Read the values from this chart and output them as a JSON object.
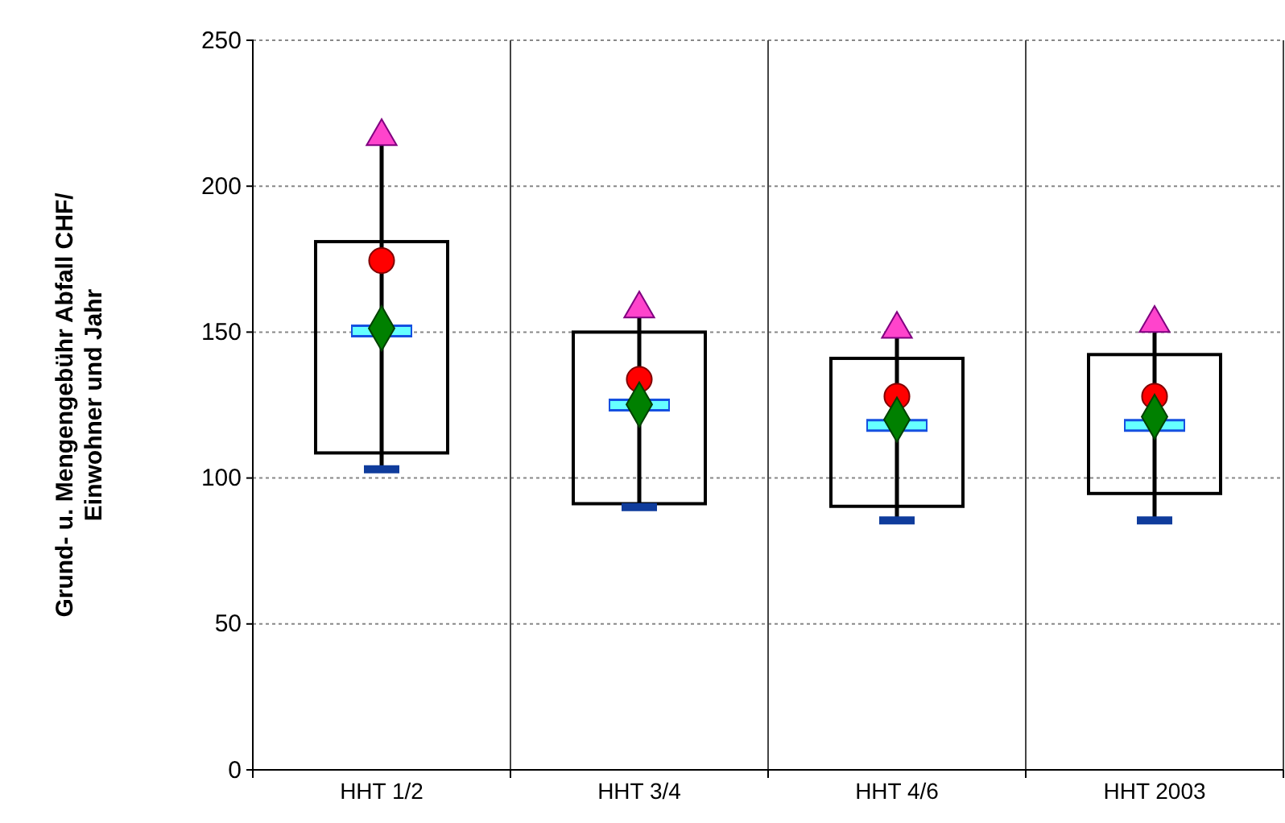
{
  "chart_data": {
    "type": "box",
    "ylabel": "Grund- u. Mengengebühr Abfall CHF/\nEinwohner und Jahr",
    "categories": [
      "HHT 1/2",
      "HHT 3/4",
      "HHT 4/6",
      "HHT 2003"
    ],
    "boxes": [
      {
        "low": 103,
        "q1": 108.6,
        "median": 150.4,
        "q3": 181,
        "high": 217
      },
      {
        "low": 90,
        "q1": 91.2,
        "median": 125,
        "q3": 150,
        "high": 158
      },
      {
        "low": 85.5,
        "q1": 90.3,
        "median": 118,
        "q3": 141,
        "high": 151
      },
      {
        "low": 85.5,
        "q1": 94.7,
        "median": 118,
        "q3": 142.3,
        "high": 153
      }
    ],
    "series": [
      {
        "type": "scatter",
        "marker": "triangle",
        "color": "#ff44cc",
        "x": [
          "HHT 1/2",
          "HHT 3/4",
          "HHT 4/6",
          "HHT 2003"
        ],
        "values": [
          217,
          158,
          151,
          153
        ]
      },
      {
        "type": "scatter",
        "marker": "circle",
        "color": "#ff0000",
        "x": [
          "HHT 1/2",
          "HHT 3/4",
          "HHT 4/6",
          "HHT 2003"
        ],
        "values": [
          174.5,
          133.8,
          128,
          128
        ]
      },
      {
        "type": "scatter",
        "marker": "diamond",
        "color": "#008000",
        "x": [
          "HHT 1/2",
          "HHT 3/4",
          "HHT 4/6",
          "HHT 2003"
        ],
        "values": [
          151.3,
          125.2,
          120,
          121
        ]
      }
    ],
    "ylim": [
      0,
      250
    ],
    "yticks": [
      0,
      50,
      100,
      150,
      200,
      250
    ],
    "grid": true
  }
}
